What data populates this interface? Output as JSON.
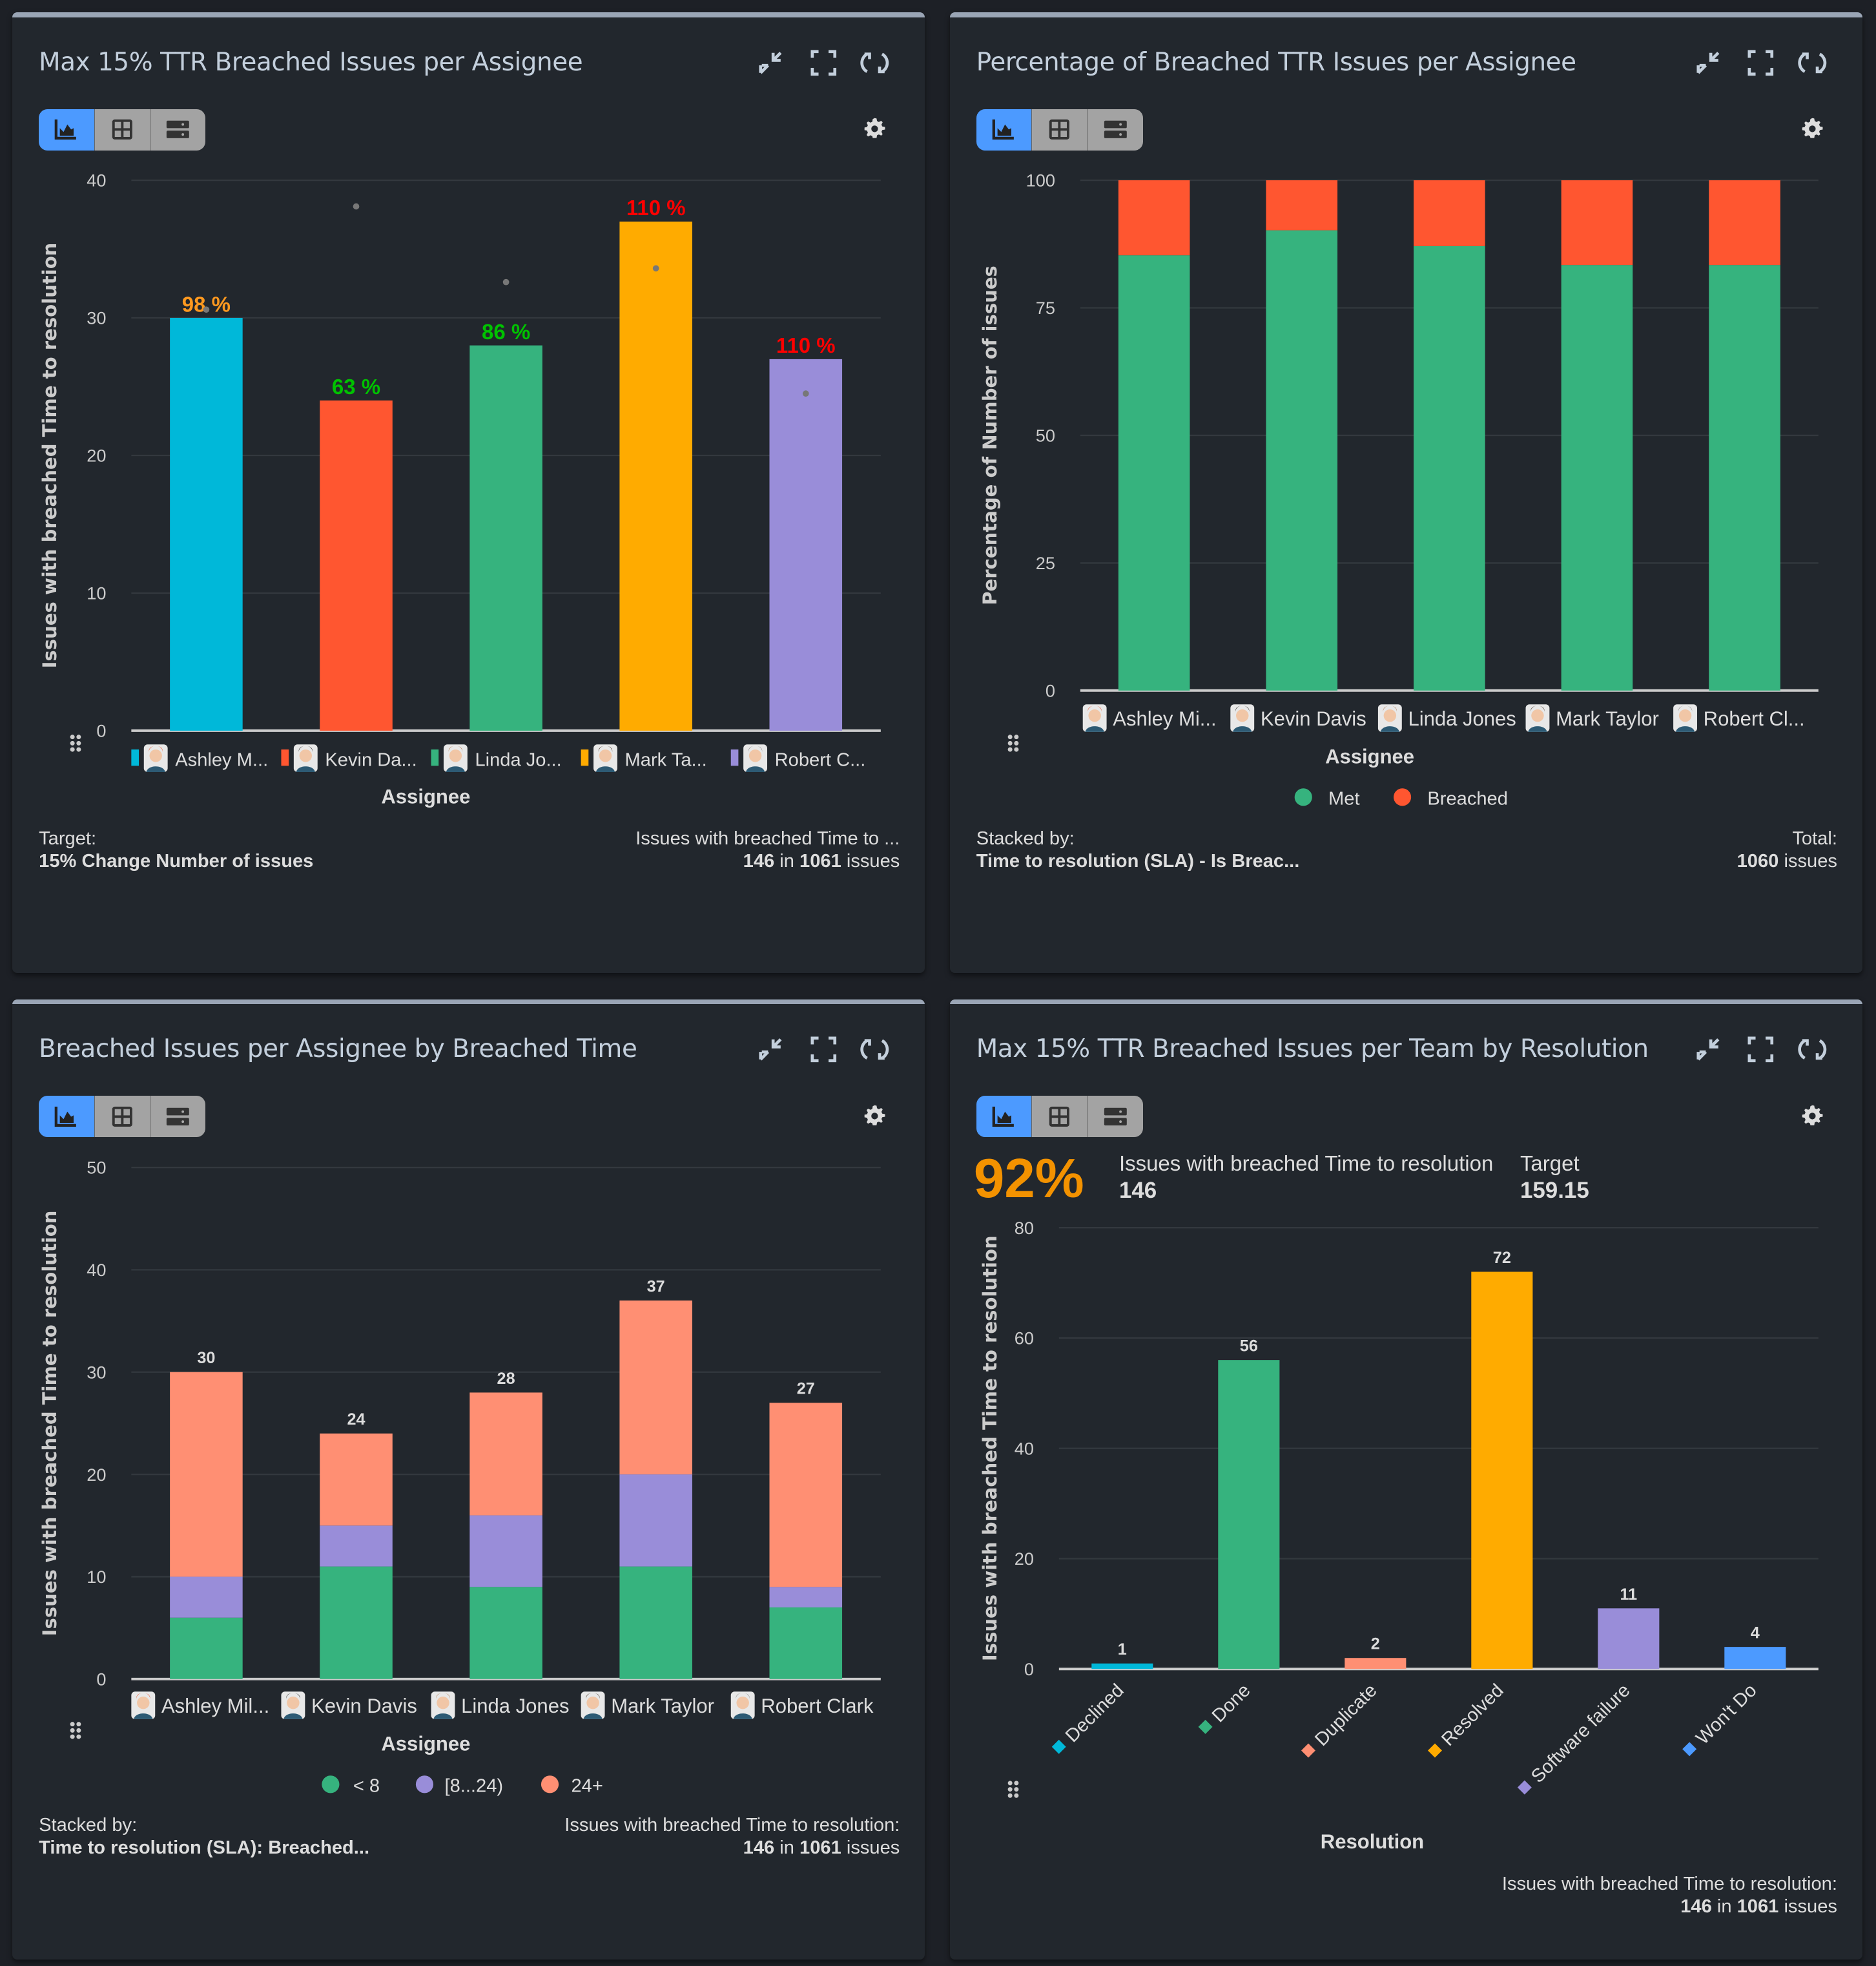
{
  "colors": {
    "background": "#1d2026",
    "panel": "#22272d",
    "accent": "#4c9aff"
  },
  "toolbar": {
    "icons": [
      "chart-icon",
      "grid-icon",
      "list-icon"
    ],
    "active": "chart-icon"
  },
  "header_icons": [
    "collapse-icon",
    "fullscreen-icon",
    "refresh-icon",
    "gear-icon"
  ],
  "panels": [
    {
      "title": "Max 15% TTR Breached Issues per Assignee",
      "footer_left_label": "Target:",
      "footer_left_value": "15% Change Number of issues",
      "footer_right_label": "Issues with breached Time to ...",
      "footer_right_count": "146",
      "footer_right_in": "in",
      "footer_right_total": "1061",
      "footer_right_unit": "issues"
    },
    {
      "title": "Percentage of Breached TTR Issues per Assignee",
      "footer_left_label": "Stacked by:",
      "footer_left_value": "Time to resolution (SLA) - Is Breac...",
      "footer_right_label": "Total:",
      "footer_right_count": "1060",
      "footer_right_unit": "issues"
    },
    {
      "title": "Breached Issues per Assignee by Breached Time",
      "footer_left_label": "Stacked by:",
      "footer_left_value": "Time to resolution (SLA): Breached...",
      "footer_right_label": "Issues with breached Time to resolution:",
      "footer_right_count": "146",
      "footer_right_in": "in",
      "footer_right_total": "1061",
      "footer_right_unit": "issues"
    },
    {
      "title": "Max 15% TTR Breached Issues per Team by Resolution",
      "kpi": {
        "percent": "92%",
        "label": "Issues with breached Time to resolution",
        "value": "146",
        "target_label": "Target",
        "target_value": "159.15"
      },
      "footer_right_label": "Issues with breached Time to resolution:",
      "footer_right_count": "146",
      "footer_right_in": "in",
      "footer_right_total": "1061",
      "footer_right_unit": "issues"
    }
  ],
  "chart_data": [
    {
      "type": "bar",
      "ylabel": "Issues with breached Time to resolution",
      "xlabel": "Assignee",
      "ylim": [
        0,
        40
      ],
      "yticks": [
        0,
        10,
        20,
        30,
        40
      ],
      "grid": true,
      "categories": [
        "Ashley M...",
        "Kevin Da...",
        "Linda Jo...",
        "Mark Ta...",
        "Robert C..."
      ],
      "values": [
        30,
        24,
        28,
        37,
        27
      ],
      "bar_colors": [
        "#00b8d9",
        "#ff5630",
        "#36b37e",
        "#ffab00",
        "#998dd9"
      ],
      "target_markers": [
        30.6,
        38.1,
        32.6,
        33.6,
        24.5
      ],
      "data_labels": [
        "98 %",
        "63 %",
        "86 %",
        "110 %",
        "110 %"
      ],
      "data_label_colors": [
        "#ff991f",
        "#00c200",
        "#00c200",
        "#ff0000",
        "#ff0000"
      ]
    },
    {
      "type": "bar",
      "stacked": true,
      "ylabel": "Percentage of Number of issues",
      "xlabel": "Assignee",
      "ylim": [
        0,
        100
      ],
      "yticks": [
        0,
        25,
        50,
        75,
        100
      ],
      "grid": true,
      "legend": "bottom",
      "categories": [
        "Ashley Mi...",
        "Kevin Davis",
        "Linda Jones",
        "Mark Taylor",
        "Robert Cl..."
      ],
      "series": [
        {
          "name": "Met",
          "color": "#36b37e",
          "values": [
            85.3,
            90.2,
            87.1,
            83.4,
            83.4
          ]
        },
        {
          "name": "Breached",
          "color": "#ff5630",
          "values": [
            14.7,
            9.8,
            12.9,
            16.6,
            16.6
          ]
        }
      ]
    },
    {
      "type": "bar",
      "stacked": true,
      "ylabel": "Issues with breached Time to resolution",
      "xlabel": "Assignee",
      "ylim": [
        0,
        50
      ],
      "yticks": [
        0,
        10,
        20,
        30,
        40,
        50
      ],
      "grid": true,
      "legend": "bottom",
      "categories": [
        "Ashley Mil...",
        "Kevin Davis",
        "Linda Jones",
        "Mark Taylor",
        "Robert Clark"
      ],
      "series": [
        {
          "name": "< 8",
          "color": "#36b37e",
          "values": [
            6,
            11,
            9,
            11,
            7
          ]
        },
        {
          "name": "[8...24)",
          "color": "#998dd9",
          "values": [
            4,
            4,
            7,
            9,
            2
          ]
        },
        {
          "name": "24+",
          "color": "#ff8f73",
          "values": [
            20,
            9,
            12,
            17,
            18
          ]
        }
      ],
      "totals": [
        30,
        24,
        28,
        37,
        27
      ]
    },
    {
      "type": "bar",
      "ylabel": "Issues with breached Time to resolution",
      "xlabel": "Resolution",
      "ylim": [
        0,
        80
      ],
      "yticks": [
        0,
        20,
        40,
        60,
        80
      ],
      "grid": true,
      "categories": [
        "Declined",
        "Done",
        "Duplicate",
        "Resolved",
        "Software failure",
        "Won't Do"
      ],
      "values": [
        1,
        56,
        2,
        72,
        11,
        4
      ],
      "bar_colors": [
        "#00b8d9",
        "#36b37e",
        "#ff8f73",
        "#ffab00",
        "#998dd9",
        "#4c9aff"
      ]
    }
  ]
}
